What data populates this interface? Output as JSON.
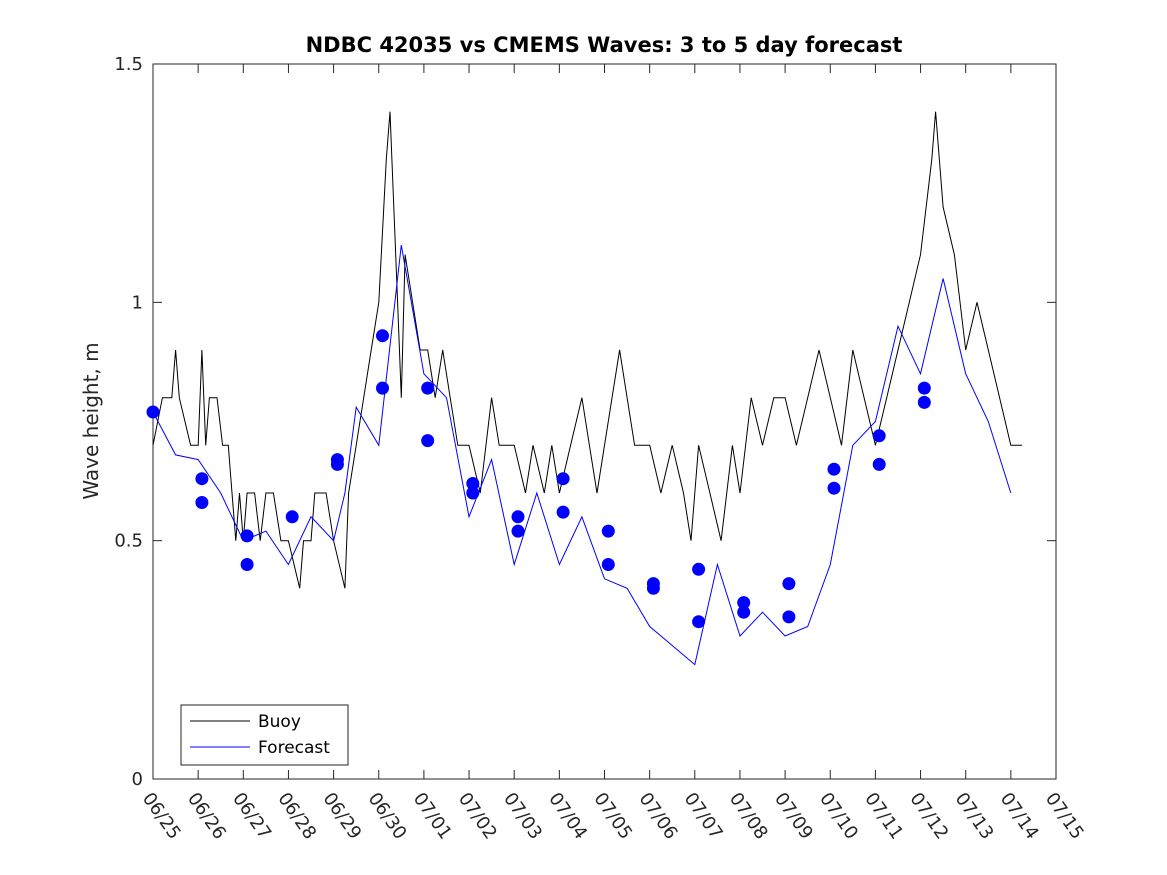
{
  "chart_data": {
    "type": "line",
    "title": "NDBC 42035 vs CMEMS Waves: 3 to 5 day forecast",
    "xlabel": "",
    "ylabel": "Wave height, m",
    "xlim": [
      "06/25",
      "07/15"
    ],
    "ylim": [
      0,
      1.5
    ],
    "x_ticks": [
      "06/25",
      "06/26",
      "06/27",
      "06/28",
      "06/29",
      "06/30",
      "07/01",
      "07/02",
      "07/03",
      "07/04",
      "07/05",
      "07/06",
      "07/07",
      "07/08",
      "07/09",
      "07/10",
      "07/11",
      "07/12",
      "07/13",
      "07/14",
      "07/15"
    ],
    "y_ticks": [
      "0",
      "0.5",
      "1",
      "1.5"
    ],
    "grid": false,
    "legend_position": "bottom-left",
    "series": [
      {
        "name": "Buoy",
        "color": "#000000",
        "style": "line",
        "points": [
          [
            "06/25 00:00",
            0.7
          ],
          [
            "06/25 05:00",
            0.8
          ],
          [
            "06/25 10:00",
            0.8
          ],
          [
            "06/25 12:00",
            0.9
          ],
          [
            "06/25 14:00",
            0.8
          ],
          [
            "06/25 20:00",
            0.7
          ],
          [
            "06/26 00:00",
            0.7
          ],
          [
            "06/26 02:00",
            0.9
          ],
          [
            "06/26 04:00",
            0.7
          ],
          [
            "06/26 06:00",
            0.8
          ],
          [
            "06/26 10:00",
            0.8
          ],
          [
            "06/26 13:00",
            0.7
          ],
          [
            "06/26 16:00",
            0.7
          ],
          [
            "06/26 18:00",
            0.6
          ],
          [
            "06/26 20:00",
            0.5
          ],
          [
            "06/26 22:00",
            0.6
          ],
          [
            "06/27 00:00",
            0.5
          ],
          [
            "06/27 02:00",
            0.6
          ],
          [
            "06/27 06:00",
            0.6
          ],
          [
            "06/27 09:00",
            0.5
          ],
          [
            "06/27 12:00",
            0.6
          ],
          [
            "06/27 16:00",
            0.6
          ],
          [
            "06/27 20:00",
            0.5
          ],
          [
            "06/28 00:00",
            0.5
          ],
          [
            "06/28 06:00",
            0.4
          ],
          [
            "06/28 08:00",
            0.5
          ],
          [
            "06/28 12:00",
            0.5
          ],
          [
            "06/28 14:00",
            0.6
          ],
          [
            "06/28 20:00",
            0.6
          ],
          [
            "06/29 00:00",
            0.5
          ],
          [
            "06/29 06:00",
            0.4
          ],
          [
            "06/29 08:00",
            0.6
          ],
          [
            "06/29 12:00",
            0.7
          ],
          [
            "06/29 16:00",
            0.8
          ],
          [
            "06/29 20:00",
            0.9
          ],
          [
            "06/30 00:00",
            1.0
          ],
          [
            "06/30 04:00",
            1.3
          ],
          [
            "06/30 06:00",
            1.4
          ],
          [
            "06/30 08:00",
            1.2
          ],
          [
            "06/30 10:00",
            1.0
          ],
          [
            "06/30 12:00",
            0.8
          ],
          [
            "06/30 14:00",
            1.1
          ],
          [
            "06/30 18:00",
            1.0
          ],
          [
            "06/30 22:00",
            0.9
          ],
          [
            "07/01 02:00",
            0.9
          ],
          [
            "07/01 06:00",
            0.8
          ],
          [
            "07/01 10:00",
            0.9
          ],
          [
            "07/01 14:00",
            0.8
          ],
          [
            "07/01 18:00",
            0.7
          ],
          [
            "07/02 00:00",
            0.7
          ],
          [
            "07/02 06:00",
            0.6
          ],
          [
            "07/02 12:00",
            0.8
          ],
          [
            "07/02 16:00",
            0.7
          ],
          [
            "07/03 00:00",
            0.7
          ],
          [
            "07/03 06:00",
            0.6
          ],
          [
            "07/03 10:00",
            0.7
          ],
          [
            "07/03 16:00",
            0.6
          ],
          [
            "07/03 20:00",
            0.7
          ],
          [
            "07/04 00:00",
            0.6
          ],
          [
            "07/04 06:00",
            0.7
          ],
          [
            "07/04 12:00",
            0.8
          ],
          [
            "07/04 16:00",
            0.7
          ],
          [
            "07/04 20:00",
            0.6
          ],
          [
            "07/05 00:00",
            0.7
          ],
          [
            "07/05 08:00",
            0.9
          ],
          [
            "07/05 12:00",
            0.8
          ],
          [
            "07/05 16:00",
            0.7
          ],
          [
            "07/06 00:00",
            0.7
          ],
          [
            "07/06 06:00",
            0.6
          ],
          [
            "07/06 12:00",
            0.7
          ],
          [
            "07/06 18:00",
            0.6
          ],
          [
            "07/06 22:00",
            0.5
          ],
          [
            "07/07 02:00",
            0.7
          ],
          [
            "07/07 08:00",
            0.6
          ],
          [
            "07/07 14:00",
            0.5
          ],
          [
            "07/07 20:00",
            0.7
          ],
          [
            "07/08 00:00",
            0.6
          ],
          [
            "07/08 06:00",
            0.8
          ],
          [
            "07/08 12:00",
            0.7
          ],
          [
            "07/08 18:00",
            0.8
          ],
          [
            "07/09 00:00",
            0.8
          ],
          [
            "07/09 06:00",
            0.7
          ],
          [
            "07/09 12:00",
            0.8
          ],
          [
            "07/09 18:00",
            0.9
          ],
          [
            "07/10 00:00",
            0.8
          ],
          [
            "07/10 06:00",
            0.7
          ],
          [
            "07/10 12:00",
            0.9
          ],
          [
            "07/10 18:00",
            0.8
          ],
          [
            "07/11 00:00",
            0.7
          ],
          [
            "07/11 06:00",
            0.8
          ],
          [
            "07/11 12:00",
            0.9
          ],
          [
            "07/11 18:00",
            1.0
          ],
          [
            "07/12 00:00",
            1.1
          ],
          [
            "07/12 06:00",
            1.3
          ],
          [
            "07/12 08:00",
            1.4
          ],
          [
            "07/12 12:00",
            1.2
          ],
          [
            "07/12 18:00",
            1.1
          ],
          [
            "07/13 00:00",
            0.9
          ],
          [
            "07/13 06:00",
            1.0
          ],
          [
            "07/13 12:00",
            0.9
          ],
          [
            "07/13 18:00",
            0.8
          ],
          [
            "07/14 00:00",
            0.7
          ],
          [
            "07/14 06:00",
            0.7
          ]
        ]
      },
      {
        "name": "Forecast",
        "color": "#0000ff",
        "style": "line",
        "points": [
          [
            "06/25 00:00",
            0.77
          ],
          [
            "06/25 12:00",
            0.68
          ],
          [
            "06/26 00:00",
            0.67
          ],
          [
            "06/26 12:00",
            0.6
          ],
          [
            "06/27 00:00",
            0.5
          ],
          [
            "06/27 12:00",
            0.52
          ],
          [
            "06/28 00:00",
            0.45
          ],
          [
            "06/28 12:00",
            0.55
          ],
          [
            "06/29 00:00",
            0.5
          ],
          [
            "06/29 06:00",
            0.6
          ],
          [
            "06/29 12:00",
            0.78
          ],
          [
            "06/30 00:00",
            0.7
          ],
          [
            "06/30 12:00",
            1.12
          ],
          [
            "07/01 00:00",
            0.85
          ],
          [
            "07/01 12:00",
            0.8
          ],
          [
            "07/02 00:00",
            0.55
          ],
          [
            "07/02 12:00",
            0.67
          ],
          [
            "07/03 00:00",
            0.45
          ],
          [
            "07/03 12:00",
            0.6
          ],
          [
            "07/04 00:00",
            0.45
          ],
          [
            "07/04 12:00",
            0.55
          ],
          [
            "07/05 00:00",
            0.42
          ],
          [
            "07/05 12:00",
            0.4
          ],
          [
            "07/06 00:00",
            0.32
          ],
          [
            "07/06 12:00",
            0.28
          ],
          [
            "07/07 00:00",
            0.24
          ],
          [
            "07/07 12:00",
            0.45
          ],
          [
            "07/08 00:00",
            0.3
          ],
          [
            "07/08 12:00",
            0.35
          ],
          [
            "07/09 00:00",
            0.3
          ],
          [
            "07/09 12:00",
            0.32
          ],
          [
            "07/10 00:00",
            0.45
          ],
          [
            "07/10 12:00",
            0.7
          ],
          [
            "07/11 00:00",
            0.75
          ],
          [
            "07/11 12:00",
            0.95
          ],
          [
            "07/12 00:00",
            0.85
          ],
          [
            "07/12 12:00",
            1.05
          ],
          [
            "07/13 00:00",
            0.85
          ],
          [
            "07/13 12:00",
            0.75
          ],
          [
            "07/14 00:00",
            0.6
          ]
        ]
      },
      {
        "name": "",
        "color": "#0000ff",
        "style": "markers",
        "points": [
          [
            "06/25 00:00",
            0.77
          ],
          [
            "06/26 02:00",
            0.63
          ],
          [
            "06/26 02:00",
            0.58
          ],
          [
            "06/27 02:00",
            0.51
          ],
          [
            "06/27 02:00",
            0.45
          ],
          [
            "06/28 02:00",
            0.55
          ],
          [
            "06/29 02:00",
            0.67
          ],
          [
            "06/29 02:00",
            0.66
          ],
          [
            "06/30 02:00",
            0.93
          ],
          [
            "06/30 02:00",
            0.82
          ],
          [
            "07/01 02:00",
            0.82
          ],
          [
            "07/01 02:00",
            0.71
          ],
          [
            "07/02 02:00",
            0.62
          ],
          [
            "07/02 02:00",
            0.6
          ],
          [
            "07/03 02:00",
            0.55
          ],
          [
            "07/03 02:00",
            0.52
          ],
          [
            "07/04 02:00",
            0.63
          ],
          [
            "07/04 02:00",
            0.56
          ],
          [
            "07/05 02:00",
            0.52
          ],
          [
            "07/05 02:00",
            0.45
          ],
          [
            "07/06 02:00",
            0.41
          ],
          [
            "07/06 02:00",
            0.4
          ],
          [
            "07/07 02:00",
            0.44
          ],
          [
            "07/07 02:00",
            0.33
          ],
          [
            "07/08 02:00",
            0.37
          ],
          [
            "07/08 02:00",
            0.35
          ],
          [
            "07/09 02:00",
            0.41
          ],
          [
            "07/09 02:00",
            0.34
          ],
          [
            "07/10 02:00",
            0.65
          ],
          [
            "07/10 02:00",
            0.61
          ],
          [
            "07/11 02:00",
            0.72
          ],
          [
            "07/11 02:00",
            0.66
          ],
          [
            "07/12 02:00",
            0.82
          ],
          [
            "07/12 02:00",
            0.79
          ]
        ]
      }
    ]
  }
}
